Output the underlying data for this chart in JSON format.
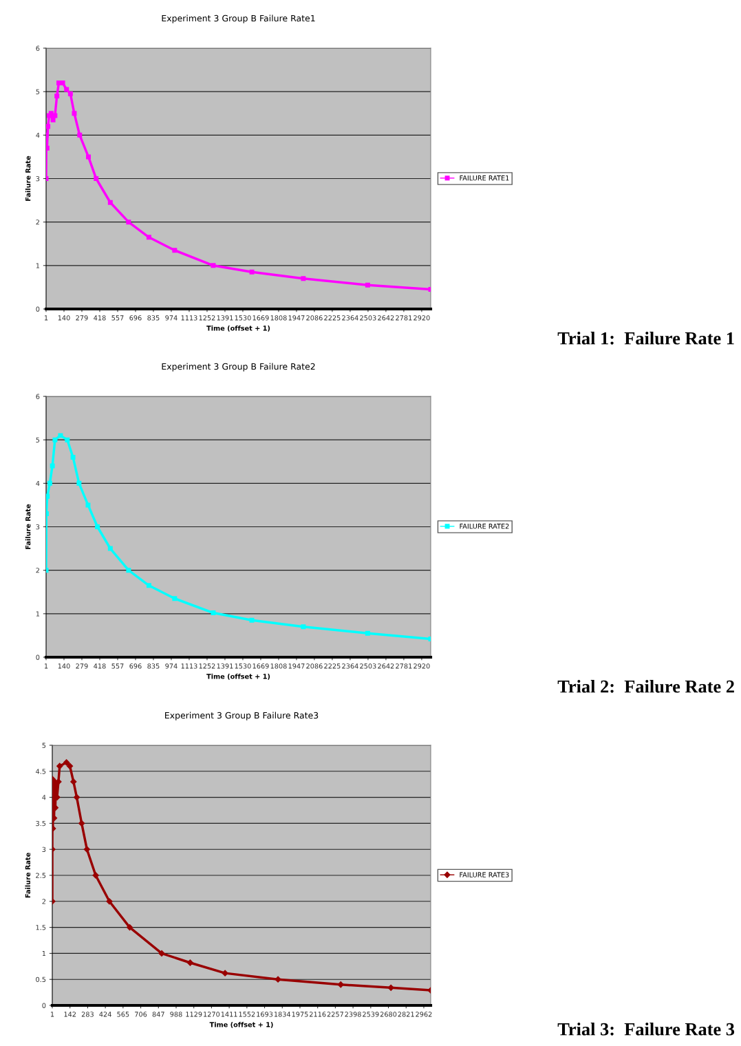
{
  "chart_data": [
    {
      "type": "line",
      "title": "Experiment 3 Group B Failure Rate1",
      "xlabel": "Time (offset + 1)",
      "ylabel": "Failure Rate",
      "legend": "right",
      "grid": "y",
      "marker": "square",
      "line_style": "solid",
      "xlim": [
        1,
        2990
      ],
      "xticks": [
        1,
        140,
        279,
        418,
        557,
        696,
        835,
        974,
        1113,
        1252,
        1391,
        1530,
        1669,
        1808,
        1947,
        2086,
        2225,
        2364,
        2503,
        2642,
        2781,
        2920
      ],
      "ylim": [
        0,
        6
      ],
      "yticks": [
        0,
        1,
        2,
        3,
        4,
        5,
        6
      ],
      "annotations": [
        "Trial 1:  Failure Rate 1"
      ],
      "series": [
        {
          "name": "FAILURE RATE1",
          "color": "#ff00ff",
          "x": [
            1,
            3,
            8,
            15,
            25,
            40,
            55,
            70,
            85,
            100,
            130,
            160,
            190,
            220,
            262,
            330,
            390,
            500,
            642,
            800,
            1000,
            1300,
            1600,
            2000,
            2500,
            2990
          ],
          "values": [
            3.0,
            4.0,
            3.7,
            4.2,
            4.45,
            4.5,
            4.35,
            4.45,
            4.9,
            5.2,
            5.2,
            5.05,
            4.95,
            4.5,
            4.0,
            3.5,
            3.0,
            2.45,
            2.0,
            1.65,
            1.35,
            1.0,
            0.85,
            0.7,
            0.55,
            0.45
          ]
        }
      ]
    },
    {
      "type": "line",
      "title": "Experiment 3 Group B Failure Rate2",
      "xlabel": "Time (offset + 1)",
      "ylabel": "Failure Rate",
      "legend": "right",
      "grid": "y",
      "marker": "square",
      "line_style": "solid",
      "xlim": [
        1,
        2990
      ],
      "xticks": [
        1,
        140,
        279,
        418,
        557,
        696,
        835,
        974,
        1113,
        1252,
        1391,
        1530,
        1669,
        1808,
        1947,
        2086,
        2225,
        2364,
        2503,
        2642,
        2781,
        2920
      ],
      "ylim": [
        0,
        6
      ],
      "yticks": [
        0,
        1,
        2,
        3,
        4,
        5,
        6
      ],
      "annotations": [
        "Trial 2:  Failure Rate 2"
      ],
      "series": [
        {
          "name": "FAILURE RATE2",
          "color": "#00ffff",
          "x": [
            1,
            3,
            10,
            30,
            50,
            70,
            113,
            166,
            210,
            257,
            327,
            400,
            500,
            642,
            800,
            1000,
            1300,
            1600,
            2000,
            2500,
            2990
          ],
          "values": [
            2.0,
            3.3,
            3.7,
            4.0,
            4.4,
            5.0,
            5.1,
            5.0,
            4.6,
            4.0,
            3.5,
            3.0,
            2.5,
            2.0,
            1.65,
            1.35,
            1.02,
            0.85,
            0.7,
            0.55,
            0.42
          ]
        }
      ]
    },
    {
      "type": "line",
      "title": "Experiment 3 Group B Failure Rate3",
      "xlabel": "Time (offset + 1)",
      "ylabel": "Failure Rate",
      "legend": "right",
      "grid": "y",
      "marker": "diamond",
      "line_style": "solid",
      "xlim": [
        1,
        3017
      ],
      "xticks": [
        1,
        142,
        283,
        424,
        565,
        706,
        847,
        988,
        1129,
        1270,
        1411,
        1552,
        1693,
        1834,
        1975,
        2116,
        2257,
        2398,
        2539,
        2680,
        2821,
        2962
      ],
      "ylim": [
        0,
        5
      ],
      "yticks": [
        0,
        0.5,
        1,
        1.5,
        2,
        2.5,
        3,
        3.5,
        4,
        4.5,
        5
      ],
      "annotations": [
        "Trial 3:  Failure Rate 3"
      ],
      "series": [
        {
          "name": "FAILURE RATE3",
          "color": "#990000",
          "x": [
            1,
            1,
            2,
            5,
            10,
            15,
            20,
            25,
            30,
            39,
            50,
            60,
            114,
            141,
            170,
            196,
            235,
            277,
            347,
            456,
            618,
            873,
            1100,
            1378,
            1800,
            2300,
            2700,
            3017
          ],
          "values": [
            2.0,
            3.0,
            4.35,
            3.4,
            4.2,
            3.6,
            4.3,
            3.8,
            4.25,
            4.0,
            4.3,
            4.6,
            4.67,
            4.6,
            4.3,
            4.0,
            3.5,
            3.0,
            2.5,
            2.0,
            1.5,
            1.0,
            0.82,
            0.62,
            0.5,
            0.4,
            0.34,
            0.29
          ]
        }
      ]
    }
  ]
}
